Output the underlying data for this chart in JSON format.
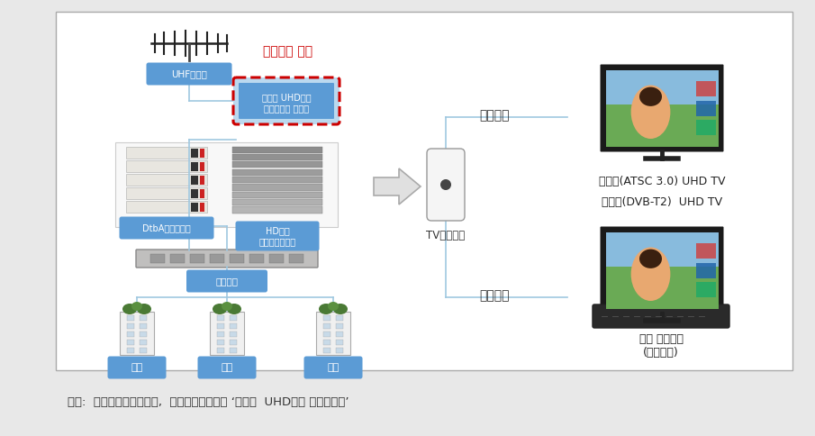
{
  "bg_color": "#e8e8e8",
  "panel_bg": "#ffffff",
  "panel_border": "#aaaaaa",
  "box_blue": "#5b9bd5",
  "red_color": "#cc0000",
  "line_color": "#a0c8e0",
  "dark_line": "#888888",
  "caption": "자료:  과학기술정보통신부,  한국전파진흥협회 ‘지상파  UHD방송 수신가이드’",
  "label_uhf": "UHF안테나",
  "label_new": "신규설치 필요",
  "label_adj_line1": "지상파 UHD방송",
  "label_adj_line2": "주파수대역 조정기",
  "label_dtba": "DtbA신호변환기",
  "label_hd_line1": "HD방송",
  "label_hd_line2": "시그널프로세서",
  "label_combiner": "콤바이너",
  "label_gakdong": "각동",
  "label_tv_wall": "TV벽면단자",
  "label_rx": "수신가능",
  "label_atsc": "미국식(ATSC 3.0) UHD TV",
  "label_dvbt2": "유럽식(DVB-T2)  UHD TV",
  "label_settop_line1": "별도 셋톱박스",
  "label_settop_line2": "(출시예정)"
}
